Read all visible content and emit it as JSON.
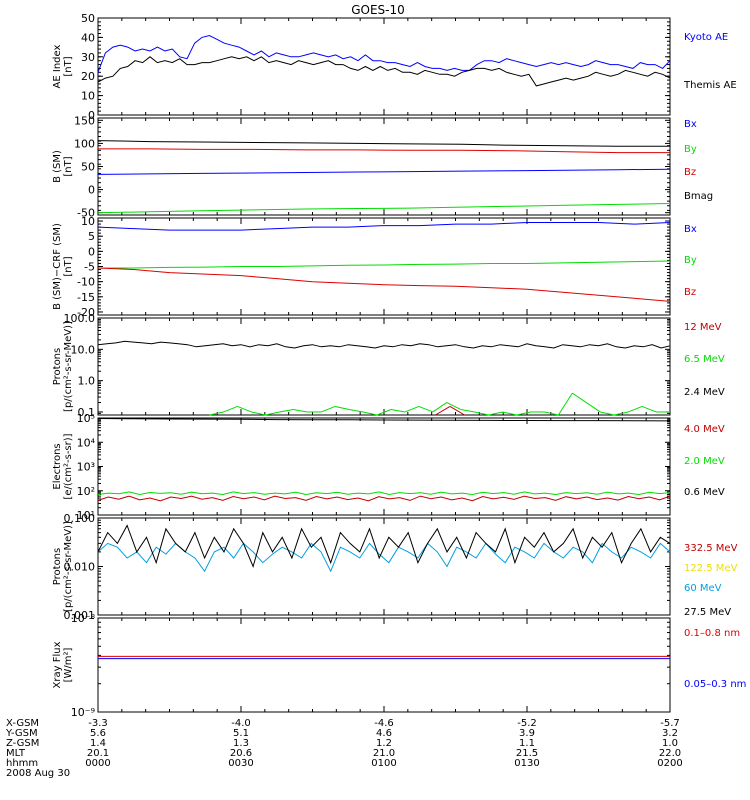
{
  "title": "GOES-10",
  "colors": {
    "black": "#000000",
    "blue": "#0000ff",
    "green": "#00dd00",
    "red": "#dd0000",
    "darkred": "#c00000",
    "yellow": "#f0e000",
    "cyan": "#00a0e0"
  },
  "chart_data": [
    {
      "id": "ae",
      "type": "line",
      "ylabel": [
        "AE Index",
        "[nT]"
      ],
      "ylim": [
        0,
        50
      ],
      "yticks": [
        0,
        10,
        20,
        30,
        40,
        50
      ],
      "scale": "linear",
      "legend_placement": "right",
      "series": [
        {
          "name": "Kyoto AE",
          "color": "blue",
          "style": "line",
          "values": [
            22,
            32,
            35,
            36,
            35,
            33,
            34,
            33,
            35,
            33,
            34,
            30,
            29,
            37,
            40,
            41,
            39,
            37,
            36,
            35,
            33,
            31,
            33,
            30,
            32,
            31,
            30,
            30,
            31,
            32,
            31,
            30,
            31,
            29,
            30,
            28,
            31,
            28,
            28,
            27,
            27,
            26,
            25,
            27,
            25,
            24,
            24,
            23,
            24,
            23,
            23,
            26,
            28,
            28,
            27,
            29,
            28,
            27,
            26,
            25,
            26,
            27,
            26,
            27,
            26,
            25,
            26,
            28,
            27,
            26,
            26,
            25,
            24,
            27,
            26,
            26,
            24,
            28
          ]
        },
        {
          "name": "Themis AE",
          "color": "black",
          "style": "line",
          "values": [
            17,
            19,
            20,
            24,
            25,
            28,
            27,
            30,
            27,
            28,
            27,
            29,
            26,
            26,
            27,
            27,
            28,
            29,
            30,
            29,
            30,
            28,
            30,
            27,
            28,
            27,
            26,
            28,
            27,
            26,
            27,
            28,
            26,
            26,
            24,
            23,
            25,
            23,
            25,
            23,
            24,
            22,
            22,
            21,
            23,
            22,
            21,
            21,
            20,
            22,
            23,
            24,
            24,
            23,
            24,
            22,
            21,
            20,
            21,
            15,
            16,
            17,
            18,
            19,
            18,
            19,
            20,
            22,
            21,
            20,
            21,
            23,
            22,
            21,
            20,
            22,
            21,
            19
          ]
        }
      ]
    },
    {
      "id": "bsm",
      "type": "line",
      "ylabel": [
        "B (SM)",
        "[nT]"
      ],
      "ylim": [
        -55,
        155
      ],
      "yticks": [
        -50,
        0,
        50,
        100,
        150
      ],
      "scale": "linear",
      "legend_placement": "right",
      "series": [
        {
          "name": "Bx",
          "color": "blue",
          "style": "line",
          "values": [
            33,
            34,
            35,
            36,
            37,
            38,
            39,
            40,
            41,
            42,
            43,
            44
          ]
        },
        {
          "name": "By",
          "color": "green",
          "style": "line",
          "values": [
            -50,
            -48,
            -46,
            -44,
            -42,
            -41,
            -40,
            -38,
            -36,
            -34,
            -32,
            -30
          ]
        },
        {
          "name": "Bz",
          "color": "red",
          "style": "line",
          "values": [
            88,
            88,
            87,
            87,
            86,
            86,
            85,
            85,
            84,
            82,
            80,
            80
          ]
        },
        {
          "name": "Bmag",
          "color": "black",
          "style": "line",
          "values": [
            106,
            104,
            103,
            102,
            101,
            100,
            99,
            98,
            96,
            95,
            94,
            94
          ]
        }
      ]
    },
    {
      "id": "bdiff",
      "type": "line",
      "ylabel": [
        "B (SM)−CRF (SM)",
        "[nT]"
      ],
      "ylim": [
        -21,
        11
      ],
      "yticks": [
        -20,
        -15,
        -10,
        -5,
        0,
        5,
        10
      ],
      "scale": "linear",
      "legend_placement": "right",
      "series": [
        {
          "name": "Bx",
          "color": "blue",
          "style": "line",
          "values": [
            8,
            7.5,
            7,
            7,
            7,
            7.5,
            8,
            8,
            8.5,
            8.5,
            9,
            9,
            9.5,
            9.5,
            9.5,
            9,
            9.5
          ]
        },
        {
          "name": "By",
          "color": "green",
          "style": "line",
          "values": [
            -5.5,
            -5.5,
            -5.3,
            -5.2,
            -5,
            -5,
            -4.8,
            -4.6,
            -4.5,
            -4.3,
            -4.2,
            -4,
            -4,
            -3.8,
            -3.6,
            -3.4,
            -3.2
          ]
        },
        {
          "name": "Bz",
          "color": "red",
          "style": "line",
          "values": [
            -5.5,
            -6,
            -7,
            -7.5,
            -8,
            -9,
            -10,
            -10.5,
            -11,
            -11.3,
            -11.5,
            -12,
            -12.5,
            -13.5,
            -14.5,
            -15.5,
            -16.5
          ]
        }
      ]
    },
    {
      "id": "protons_hi",
      "type": "line",
      "ylabel": [
        "Protons",
        "[p/(cm²-s-sr-MeV)]"
      ],
      "ylim": [
        0.08,
        100
      ],
      "yticks": [
        0.1,
        1,
        10,
        100
      ],
      "yticklabels": [
        "0.1",
        "1.0",
        "10.0",
        "100.0"
      ],
      "scale": "log",
      "legend_placement": "right",
      "series": [
        {
          "name": "12 MeV",
          "color": "darkred",
          "style": "dashes",
          "values": [
            0.08,
            0.08,
            0.08,
            0.08,
            0.08,
            0.08,
            0.08,
            0.08,
            0.08,
            0.08,
            0.08,
            0.08,
            0.08,
            0.08,
            0.08,
            0.08,
            0.08,
            0.08,
            0.08,
            0.08,
            0.08,
            0.08,
            0.08,
            0.08,
            0.15,
            0.08,
            0.08,
            0.08,
            0.08,
            0.08,
            0.08,
            0.08,
            0.08,
            0.08,
            0.08,
            0.08,
            0.08,
            0.08,
            0.08,
            0.08
          ]
        },
        {
          "name": "6.5 MeV",
          "color": "green",
          "style": "dashes",
          "values": [
            0.08,
            0.08,
            0.08,
            0.08,
            0.08,
            0.08,
            0.08,
            0.08,
            0.08,
            0.1,
            0.15,
            0.1,
            0.08,
            0.1,
            0.12,
            0.1,
            0.1,
            0.15,
            0.12,
            0.1,
            0.08,
            0.12,
            0.1,
            0.15,
            0.1,
            0.2,
            0.12,
            0.1,
            0.08,
            0.1,
            0.08,
            0.1,
            0.1,
            0.08,
            0.4,
            0.2,
            0.1,
            0.08,
            0.1,
            0.15,
            0.1,
            0.1
          ]
        },
        {
          "name": "2.4 MeV",
          "color": "black",
          "style": "line",
          "values": [
            14,
            15,
            16,
            18,
            17,
            16,
            15,
            17,
            16,
            15,
            14,
            12,
            13,
            14,
            15,
            13,
            14,
            12,
            14,
            13,
            15,
            12,
            11,
            13,
            14,
            12,
            13,
            12,
            14,
            13,
            12,
            11,
            13,
            12,
            14,
            13,
            15,
            14,
            12,
            13,
            14,
            12,
            11,
            13,
            12,
            14,
            13,
            12,
            15,
            13,
            12,
            11,
            14,
            13,
            12,
            14,
            13,
            15,
            12,
            11,
            13,
            12,
            14,
            11,
            13
          ]
        }
      ]
    },
    {
      "id": "electrons",
      "type": "line",
      "ylabel": [
        "Electrons",
        "[e/(cm²-s-sr)]"
      ],
      "ylim": [
        10,
        100000
      ],
      "yticks": [
        10,
        100,
        1000,
        10000,
        100000
      ],
      "yticklabels": [
        "10¹",
        "10²",
        "10³",
        "10⁴",
        "10⁵"
      ],
      "scale": "log",
      "legend_placement": "right",
      "series": [
        {
          "name": "4.0 MeV",
          "color": "darkred",
          "style": "line",
          "values": [
            40,
            55,
            45,
            60,
            42,
            50,
            38,
            55,
            48,
            60,
            45,
            52,
            40,
            58,
            47,
            55,
            42,
            60,
            48,
            52,
            40,
            58,
            46,
            55,
            43,
            50,
            38,
            57,
            46,
            52,
            40,
            60,
            47,
            55,
            42,
            50,
            39,
            58,
            46,
            54,
            44,
            60,
            48,
            52,
            40,
            57,
            46,
            55,
            43,
            50,
            41,
            58,
            47,
            55,
            42,
            60
          ]
        },
        {
          "name": "2.0 MeV",
          "color": "green",
          "style": "line",
          "values": [
            70,
            80,
            75,
            90,
            70,
            85,
            78,
            82,
            72,
            88,
            75,
            80,
            70,
            90,
            76,
            84,
            72,
            80,
            74,
            88,
            70,
            82,
            76,
            86,
            72,
            80,
            74,
            90,
            70,
            84,
            76,
            82,
            72,
            88,
            74,
            80,
            70,
            86,
            76,
            84,
            72,
            90,
            74,
            80,
            70,
            84,
            76,
            82,
            72,
            88,
            74,
            80,
            70,
            86,
            76,
            84
          ]
        },
        {
          "name": "0.6 MeV",
          "color": "black",
          "style": "line",
          "values": [
            95000,
            93000,
            91000,
            90000,
            88000,
            86000,
            85000,
            84000,
            83000,
            82000,
            81000,
            80000,
            79000,
            78000,
            78000,
            77000,
            76000
          ]
        }
      ]
    },
    {
      "id": "protons_lo",
      "type": "line",
      "ylabel": [
        "Protons",
        "[p/(cm²-s-sr-MeV)]"
      ],
      "ylim": [
        0.001,
        0.1
      ],
      "yticks": [
        0.001,
        0.01,
        0.1
      ],
      "yticklabels": [
        "0.001",
        "0.010",
        "0.100"
      ],
      "scale": "log",
      "legend_placement": "right",
      "series": [
        {
          "name": "332.5 MeV",
          "color": "darkred",
          "style": "none",
          "values": []
        },
        {
          "name": "122.5 MeV",
          "color": "yellow",
          "style": "none",
          "values": []
        },
        {
          "name": "60 MeV",
          "color": "cyan",
          "style": "line",
          "values": [
            0.02,
            0.03,
            0.025,
            0.015,
            0.02,
            0.012,
            0.025,
            0.018,
            0.03,
            0.02,
            0.015,
            0.008,
            0.02,
            0.025,
            0.015,
            0.03,
            0.02,
            0.012,
            0.018,
            0.025,
            0.02,
            0.015,
            0.03,
            0.02,
            0.008,
            0.025,
            0.02,
            0.015,
            0.03,
            0.018,
            0.012,
            0.025,
            0.02,
            0.015,
            0.03,
            0.02,
            0.01,
            0.025,
            0.02,
            0.015,
            0.03,
            0.018,
            0.012,
            0.025,
            0.02,
            0.015,
            0.03,
            0.02,
            0.015,
            0.025,
            0.02,
            0.012,
            0.03,
            0.02,
            0.015,
            0.025,
            0.02,
            0.015,
            0.03,
            0.02
          ]
        },
        {
          "name": "27.5 MeV",
          "color": "black",
          "style": "line",
          "values": [
            0.02,
            0.05,
            0.03,
            0.07,
            0.02,
            0.04,
            0.012,
            0.06,
            0.03,
            0.02,
            0.05,
            0.015,
            0.04,
            0.02,
            0.06,
            0.03,
            0.01,
            0.05,
            0.02,
            0.04,
            0.015,
            0.06,
            0.025,
            0.04,
            0.012,
            0.05,
            0.03,
            0.02,
            0.06,
            0.015,
            0.04,
            0.025,
            0.05,
            0.012,
            0.03,
            0.06,
            0.02,
            0.04,
            0.015,
            0.05,
            0.03,
            0.02,
            0.06,
            0.012,
            0.04,
            0.025,
            0.05,
            0.02,
            0.03,
            0.06,
            0.015,
            0.04,
            0.025,
            0.05,
            0.012,
            0.03,
            0.06,
            0.02,
            0.04,
            0.03
          ]
        }
      ]
    },
    {
      "id": "xray",
      "type": "line",
      "ylabel": [
        "Xray Flux",
        "[W/m²]"
      ],
      "ylim": [
        1e-09,
        1e-08
      ],
      "yticks": [
        1e-09,
        1e-08
      ],
      "yticklabels": [
        "10⁻⁹",
        "10⁻⁸"
      ],
      "scale": "log",
      "legend_placement": "right",
      "series": [
        {
          "name": "0.1–0.8 nm",
          "color": "red",
          "style": "line",
          "values": [
            3.9e-09,
            3.9e-09,
            3.9e-09,
            3.9e-09,
            3.9e-09,
            3.9e-09,
            3.9e-09,
            3.9e-09,
            3.9e-09,
            3.9e-09
          ]
        },
        {
          "name": "0.05–0.3 nm",
          "color": "blue",
          "style": "line",
          "values": [
            3.7e-09,
            3.7e-09,
            3.7e-09,
            3.7e-09,
            3.7e-09,
            3.7e-09,
            3.7e-09,
            3.7e-09,
            3.7e-09,
            3.7e-09
          ]
        }
      ]
    }
  ],
  "ephemeris": {
    "rows": [
      "X-GSM",
      "Y-GSM",
      "Z-GSM",
      "MLT",
      "hhmm"
    ],
    "columns": [
      [
        "-3.3",
        "5.6",
        "1.4",
        "20.1",
        "0000"
      ],
      [
        "-4.0",
        "5.1",
        "1.3",
        "20.6",
        "0030"
      ],
      [
        "-4.6",
        "4.6",
        "1.2",
        "21.0",
        "0100"
      ],
      [
        "-5.2",
        "3.9",
        "1.1",
        "21.5",
        "0130"
      ],
      [
        "-5.7",
        "3.2",
        "1.0",
        "22.0",
        "0200"
      ]
    ],
    "date": "2008 Aug 30"
  }
}
